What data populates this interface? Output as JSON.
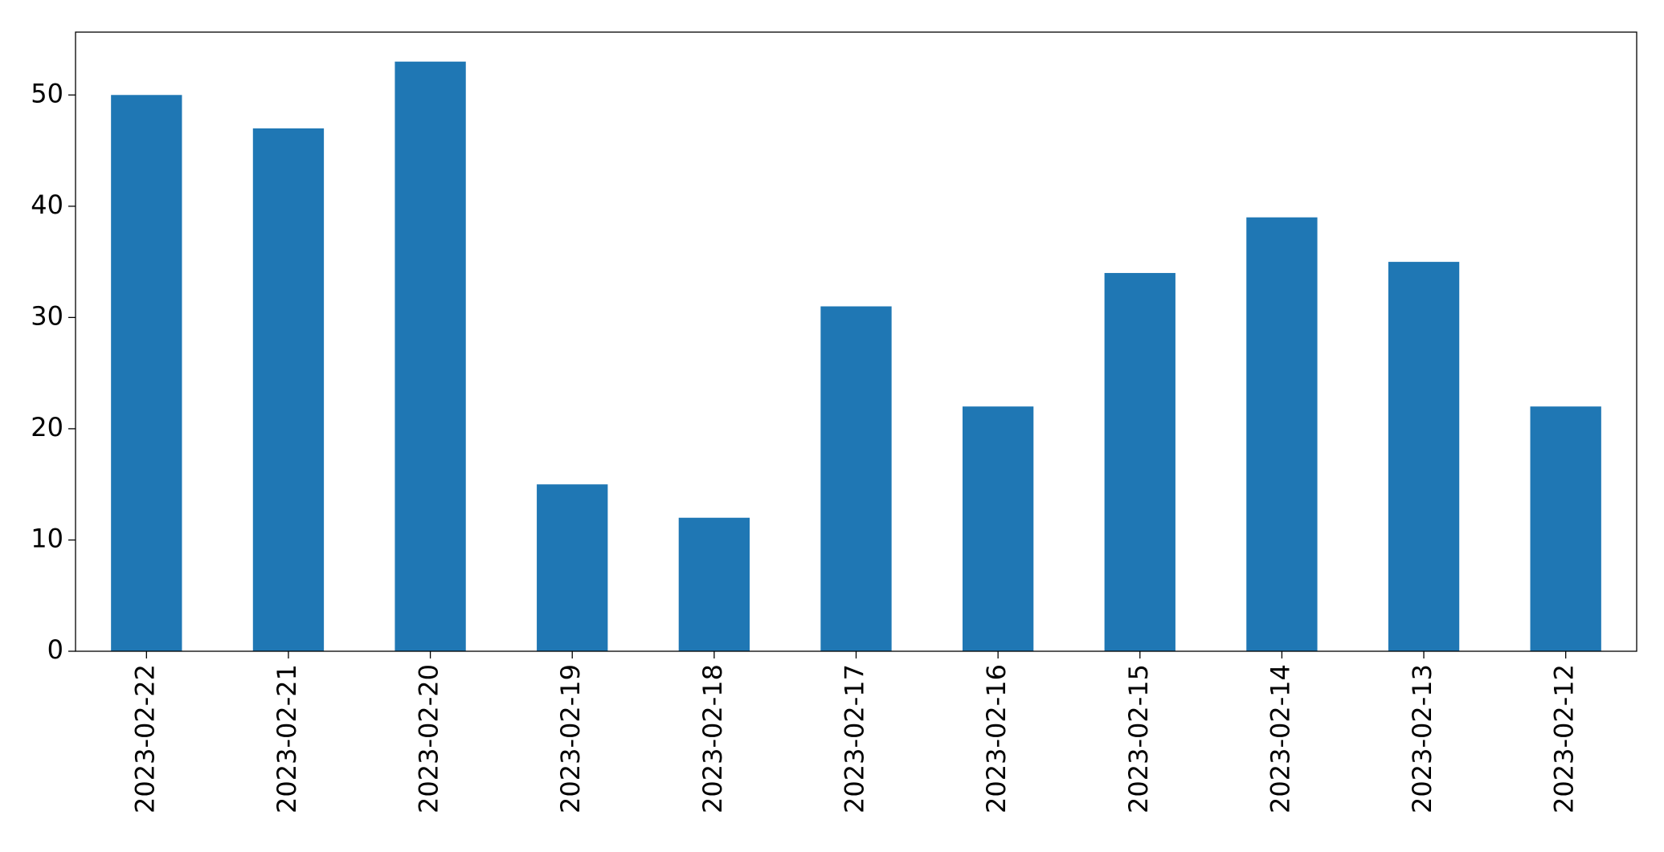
{
  "chart_data": {
    "type": "bar",
    "categories": [
      "2023-02-22",
      "2023-02-21",
      "2023-02-20",
      "2023-02-19",
      "2023-02-18",
      "2023-02-17",
      "2023-02-16",
      "2023-02-15",
      "2023-02-14",
      "2023-02-13",
      "2023-02-12"
    ],
    "values": [
      50,
      47,
      53,
      15,
      12,
      31,
      22,
      34,
      39,
      35,
      22
    ],
    "color": "#1f77b4",
    "ylim": [
      0,
      55.65
    ],
    "yticks": [
      0,
      10,
      20,
      30,
      40,
      50
    ],
    "grid": false
  }
}
